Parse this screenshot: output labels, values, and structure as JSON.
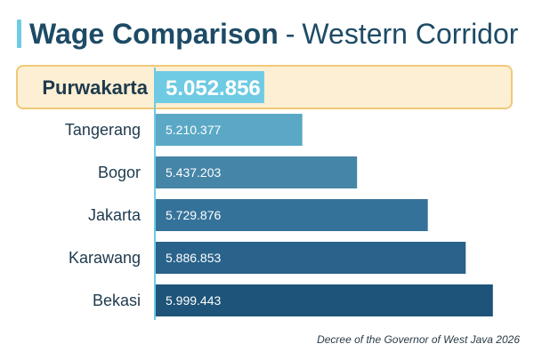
{
  "title": {
    "bold": "Wage Comparison",
    "separator": "-",
    "rest": "Western Corridor"
  },
  "source_note": "Decree of the Governor of West Java 2026",
  "colors": {
    "accent": "#6fcbe3",
    "highlight_fill": "#fcefd3",
    "highlight_border": "#f0c978",
    "title": "#1d4b66",
    "bars": [
      "#6fcbe3",
      "#5aa8c6",
      "#4585a7",
      "#35729a",
      "#29628a",
      "#1e5479"
    ]
  },
  "chart_data": {
    "type": "bar",
    "orientation": "horizontal",
    "categories": [
      "Purwakarta",
      "Tangerang",
      "Bogor",
      "Jakarta",
      "Karawang",
      "Bekasi"
    ],
    "values": [
      5052856,
      5210377,
      5437203,
      5729876,
      5886853,
      5999443
    ],
    "value_labels": [
      "5.052.856",
      "5.210.377",
      "5.437.203",
      "5.729.876",
      "5.886.853",
      "5.999.443"
    ],
    "highlighted_category": "Purwakarta",
    "xlim": [
      4600000,
      6050000
    ],
    "grid": false,
    "legend": "none"
  }
}
